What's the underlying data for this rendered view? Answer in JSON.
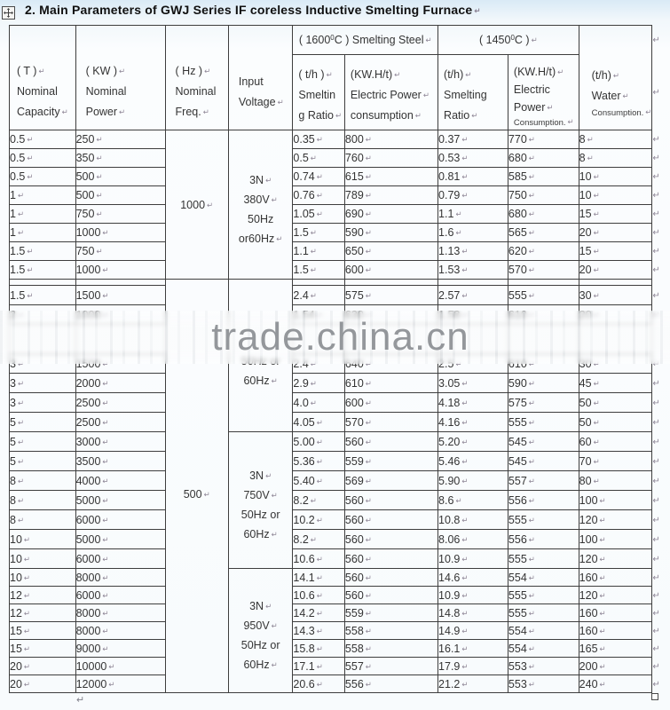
{
  "title": "2. Main Parameters of GWJ Series IF coreless Inductive Smelting Furnace",
  "marks": {
    "return": "↵"
  },
  "watermark": {
    "text": "trade.china.cn"
  },
  "header": {
    "capacity": {
      "l1": "( T )",
      "l2": "Nominal",
      "l3": "Capacity"
    },
    "power": {
      "l1": "( KW )",
      "l2": "Nominal Power"
    },
    "freq": {
      "l1": "( Hz )",
      "l2": "Nominal",
      "l3": "Freq."
    },
    "voltage": {
      "l1": "Input",
      "l2": "Voltage"
    },
    "group1600": {
      "open": "( 1600",
      "sup": "0",
      "close": "C ) Smelting Steel"
    },
    "group1450": {
      "open": "( 1450",
      "sup": "0",
      "close": "C )"
    },
    "ratio1600": {
      "l1": "( t/h )",
      "l2": "Smeltin",
      "l3": "g Ratio"
    },
    "power1600": {
      "l1": "(KW.H/t)",
      "l2": "Electric Power",
      "l3": "consumption"
    },
    "ratio1450": {
      "l1": "(t/h)",
      "l2": "Smelting",
      "l3": "Ratio"
    },
    "power1450": {
      "l1": "(KW.H/t)",
      "l2": "Electric",
      "l3": "Power",
      "l4": "Consumption."
    },
    "water": {
      "l1": "(t/h)",
      "l2": "Water",
      "l3": "Consumption."
    }
  },
  "freq_cells": [
    {
      "at": 0,
      "span": 8,
      "text": "1000"
    },
    {
      "at": 8,
      "span": 22,
      "text": "500"
    }
  ],
  "voltage_cells": [
    {
      "at": 0,
      "span": 8,
      "lines": [
        "3N",
        "380V",
        "50Hz",
        "or60Hz"
      ],
      "marks": [
        1,
        1,
        0,
        1
      ],
      "bottom": false
    },
    {
      "at": 8,
      "span": 8,
      "lines": [
        "50Hz or",
        "60Hz"
      ],
      "marks": [
        0,
        1
      ],
      "bottom": true
    },
    {
      "at": 16,
      "span": 7,
      "lines": [
        "3N",
        "750V",
        "50Hz or",
        "60Hz"
      ],
      "marks": [
        1,
        1,
        0,
        1
      ],
      "bottom": false
    },
    {
      "at": 23,
      "span": 7,
      "lines": [
        "3N",
        "950V",
        "50Hz or",
        "60Hz"
      ],
      "marks": [
        1,
        1,
        0,
        1
      ],
      "bottom": false
    }
  ],
  "rows": [
    [
      "0.5",
      "250",
      "0.35",
      "800",
      "0.37",
      "770",
      "8"
    ],
    [
      "0.5",
      "350",
      "0.5",
      "760",
      "0.53",
      "680",
      "8"
    ],
    [
      "0.5",
      "500",
      "0.74",
      "615",
      "0.81",
      "585",
      "10"
    ],
    [
      "1",
      "500",
      "0.76",
      "789",
      "0.79",
      "750",
      "10"
    ],
    [
      "1",
      "750",
      "1.05",
      "690",
      "1.1",
      "680",
      "15"
    ],
    [
      "1",
      "1000",
      "1.5",
      "590",
      "1.6",
      "565",
      "20"
    ],
    [
      "1.5",
      "750",
      "1.1",
      "650",
      "1.13",
      "620",
      "15"
    ],
    [
      "1.5",
      "1000",
      "1.5",
      "600",
      "1.53",
      "570",
      "20"
    ],
    "gap",
    [
      "1.5",
      "1500",
      "2.4",
      "575",
      "2.57",
      "555",
      "30"
    ],
    [
      "2",
      "1000",
      "1.54",
      "630",
      "1.58",
      "610",
      "20"
    ],
    "hidden",
    [
      "3",
      "1500",
      "2.4",
      "640",
      "2.5",
      "610",
      "30"
    ],
    [
      "3",
      "2000",
      "2.9",
      "610",
      "3.05",
      "590",
      "45"
    ],
    [
      "3",
      "2500",
      "4.0",
      "600",
      "4.18",
      "575",
      "50"
    ],
    [
      "5",
      "2500",
      "4.05",
      "570",
      "4.16",
      "555",
      "50"
    ],
    [
      "5",
      "3000",
      "5.00",
      "560",
      "5.20",
      "545",
      "60"
    ],
    [
      "5",
      "3500",
      "5.36",
      "559",
      "5.46",
      "545",
      "70"
    ],
    [
      "8",
      "4000",
      "5.40",
      "569",
      "5.90",
      "557",
      "80"
    ],
    [
      "8",
      "5000",
      "8.2",
      "560",
      "8.6",
      "556",
      "100"
    ],
    [
      "8",
      "6000",
      "10.2",
      "560",
      "10.8",
      "555",
      "120"
    ],
    [
      "10",
      "5000",
      "8.2",
      "560",
      "8.06",
      "556",
      "100"
    ],
    [
      "10",
      "6000",
      "10.6",
      "560",
      "10.9",
      "555",
      "120"
    ],
    [
      "10",
      "8000",
      "14.1",
      "560",
      "14.6",
      "554",
      "160"
    ],
    [
      "12",
      "6000",
      "10.6",
      "560",
      "10.9",
      "555",
      "120"
    ],
    [
      "12",
      "8000",
      "14.2",
      "559",
      "14.8",
      "555",
      "160"
    ],
    [
      "15",
      "8000",
      "14.3",
      "558",
      "14.9",
      "554",
      "160"
    ],
    [
      "15",
      "9000",
      "15.8",
      "558",
      "16.1",
      "554",
      "165"
    ],
    [
      "20",
      "10000",
      "17.1",
      "557",
      "17.9",
      "553",
      "200"
    ],
    [
      "20",
      "12000",
      "20.6",
      "556",
      "21.2",
      "553",
      "240"
    ]
  ]
}
